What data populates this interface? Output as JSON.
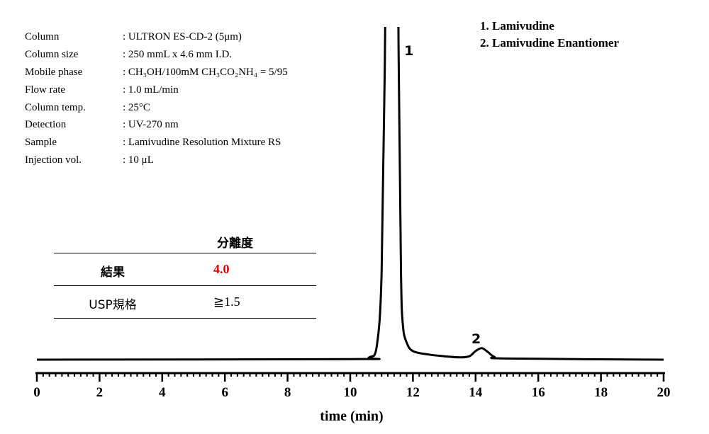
{
  "conditions": [
    {
      "label": "Column",
      "value": ": ULTRON ES-CD-2 (5μm)"
    },
    {
      "label": "Column size",
      "value": ": 250 mmL x 4.6 mm I.D."
    },
    {
      "label": "Mobile phase",
      "value": ": CH₃OH/100mM CH₃CO₂NH₄ = 5/95"
    },
    {
      "label": "Flow rate",
      "value": ": 1.0 mL/min"
    },
    {
      "label": "Column temp.",
      "value": ": 25°C"
    },
    {
      "label": "Detection",
      "value": ": UV-270 nm"
    },
    {
      "label": "Sample",
      "value": ": Lamivudine Resolution Mixture RS"
    },
    {
      "label": "Injection vol.",
      "value": ": 10 μL"
    }
  ],
  "legend": [
    "1. Lamivudine",
    "2. Lamivudine Enantiomer"
  ],
  "resolution_table": {
    "header": "分離度",
    "rows": [
      {
        "label": "結果",
        "value": "4.0",
        "color": "#e00000"
      },
      {
        "label": "USP規格",
        "value": "≧1.5"
      }
    ]
  },
  "chart_data": {
    "type": "line",
    "xlabel": "time (min)",
    "ylabel": "",
    "xlim": [
      0,
      20
    ],
    "x_ticks": [
      0,
      2,
      4,
      6,
      8,
      10,
      12,
      14,
      16,
      18,
      20
    ],
    "grid": false,
    "series": [
      {
        "x": [
          0,
          10.0,
          10.6,
          10.85,
          11.0,
          11.1,
          11.2,
          11.45,
          11.55,
          11.62,
          11.68,
          11.8,
          12.0,
          12.5,
          13.0,
          13.5,
          13.8,
          14.0,
          14.2,
          14.4,
          14.6,
          15.0,
          20
        ],
        "y": [
          0,
          0.1,
          0.4,
          2.5,
          15,
          50,
          100,
          100,
          50,
          15,
          6,
          3,
          1.5,
          0.9,
          0.6,
          0.4,
          0.6,
          1.5,
          2.0,
          1.3,
          0.5,
          0.2,
          0
        ]
      }
    ],
    "peaks": [
      {
        "label": "1",
        "x": 11.6
      },
      {
        "label": "2",
        "x": 14.2
      }
    ]
  }
}
